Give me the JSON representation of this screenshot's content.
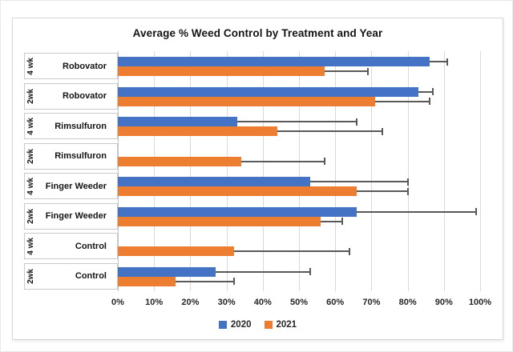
{
  "chart_data": {
    "type": "bar",
    "orientation": "horizontal",
    "title": "Average % Weed Control by Treatment and Year",
    "axis_range": [
      0,
      100
    ],
    "grid": true,
    "error_bars": "one-sided-high",
    "legend_position": "bottom",
    "x_axis": {
      "ticks": [
        "0%",
        "10%",
        "20%",
        "30%",
        "40%",
        "50%",
        "60%",
        "70%",
        "80%",
        "90%",
        "100%"
      ]
    },
    "series": [
      {
        "name": "2020",
        "color": "#4472C4"
      },
      {
        "name": "2021",
        "color": "#ED7D31"
      }
    ],
    "categories": [
      {
        "week": "4 wk",
        "treatment": "Robovator",
        "values": [
          86,
          57
        ],
        "error_high": [
          91,
          69
        ]
      },
      {
        "week": "2wk",
        "treatment": "Robovator",
        "values": [
          83,
          71
        ],
        "error_high": [
          87,
          86
        ]
      },
      {
        "week": "4 wk",
        "treatment": "Rimsulfuron",
        "values": [
          33,
          44
        ],
        "error_high": [
          66,
          73
        ]
      },
      {
        "week": "2wk",
        "treatment": "Rimsulfuron",
        "values": [
          null,
          34
        ],
        "error_high": [
          null,
          57
        ]
      },
      {
        "week": "4 wk",
        "treatment": "Finger Weeder",
        "values": [
          53,
          66
        ],
        "error_high": [
          80,
          80
        ]
      },
      {
        "week": "2wk",
        "treatment": "Finger Weeder",
        "values": [
          66,
          56
        ],
        "error_high": [
          99,
          62
        ]
      },
      {
        "week": "4 wk",
        "treatment": "Control",
        "values": [
          null,
          32
        ],
        "error_high": [
          null,
          64
        ]
      },
      {
        "week": "2wk",
        "treatment": "Control",
        "values": [
          27,
          16
        ],
        "error_high": [
          53,
          32
        ]
      }
    ]
  },
  "colors": {
    "series_2020": "#4472C4",
    "series_2021": "#ED7D31",
    "gridline": "#D9D9D9",
    "error_bar": "#595959",
    "text": "#141414",
    "chart_border": "#D6D6D6"
  }
}
